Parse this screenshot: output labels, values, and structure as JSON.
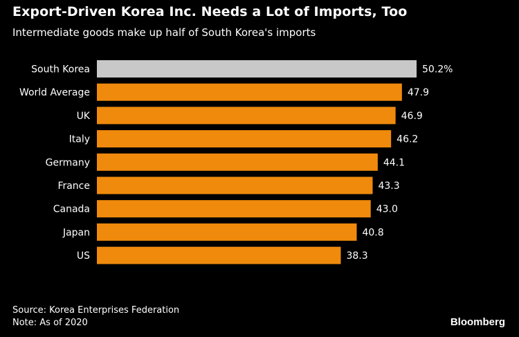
{
  "chart_data": {
    "type": "bar",
    "orientation": "horizontal",
    "title": "Export-Driven Korea Inc. Needs a Lot of Imports, Too",
    "subtitle": "Intermediate goods make up half of South Korea's imports",
    "categories": [
      "South Korea",
      "World Average",
      "UK",
      "Italy",
      "Germany",
      "France",
      "Canada",
      "Japan",
      "US"
    ],
    "values": [
      50.2,
      47.9,
      46.9,
      46.2,
      44.1,
      43.3,
      43.0,
      40.8,
      38.3
    ],
    "value_labels": [
      "50.2%",
      "47.9",
      "46.9",
      "46.2",
      "44.1",
      "43.3",
      "43.0",
      "40.8",
      "38.3"
    ],
    "highlight_category": "South Korea",
    "xlim": [
      0,
      50.2
    ],
    "grid": false,
    "colors": {
      "highlight": "#c8c8c8",
      "bar": "#f08a0c",
      "text": "#ffffff",
      "background": "#000000"
    }
  },
  "footer": {
    "source": "Source: Korea Enterprises Federation",
    "note": "Note: As of 2020",
    "brand": "Bloomberg"
  }
}
